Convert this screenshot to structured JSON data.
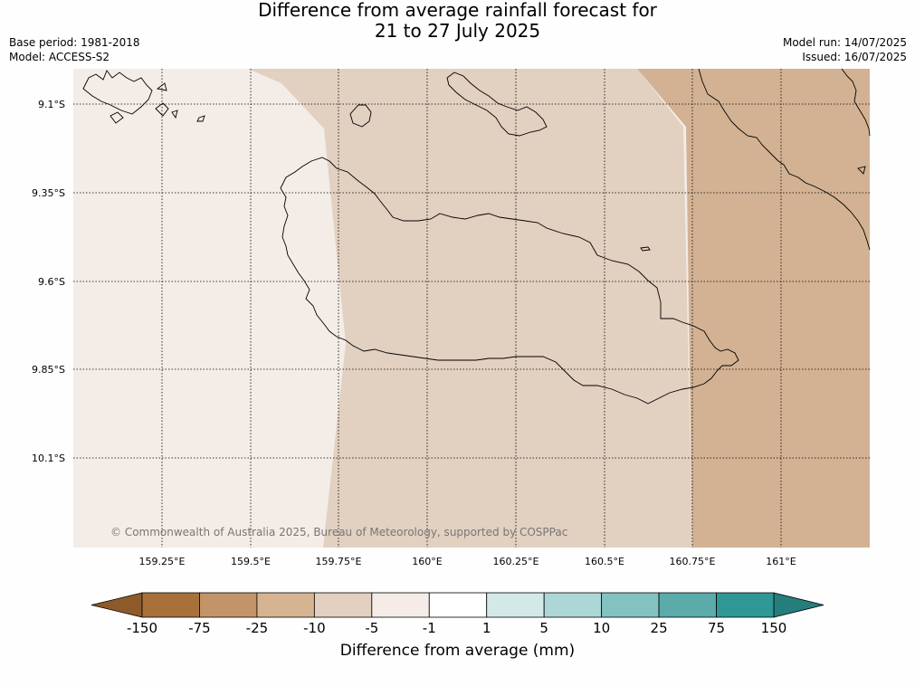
{
  "title": {
    "line1": "Difference from average rainfall forecast for",
    "line2": "21 to 27 July 2025"
  },
  "meta": {
    "base_period": "Base period: 1981-2018",
    "model": "Model: ACCESS-S2",
    "model_run": "Model run: 14/07/2025",
    "issued": "Issued: 16/07/2025"
  },
  "map": {
    "latitude_labels": [
      "9.1°S",
      "9.35°S",
      "9.6°S",
      "9.85°S",
      "10.1°S"
    ],
    "longitude_labels": [
      "159.25°E",
      "159.5°E",
      "159.75°E",
      "160°E",
      "160.25°E",
      "160.5°E",
      "160.75°E",
      "161°E"
    ],
    "copyright": "© Commonwealth of Australia 2025, Bureau of Meteorology, supported by COSPPac",
    "zones": [
      {
        "category": "-5 to -1",
        "color": "#f4ece7"
      },
      {
        "category": "-10 to -5",
        "color": "#e2d0c0"
      },
      {
        "category": "-25 to -10",
        "color": "#d2b293"
      }
    ]
  },
  "colorbar": {
    "ticks": [
      "-150",
      "-75",
      "-25",
      "-10",
      "-5",
      "-1",
      "1",
      "5",
      "10",
      "25",
      "75",
      "150"
    ],
    "colors": [
      "#a8713a",
      "#c39468",
      "#d6b391",
      "#e3d0c1",
      "#f5ece7",
      "#ffffff",
      "#d3e9e8",
      "#acd7d6",
      "#84c2c1",
      "#5aabaa",
      "#2f9896"
    ],
    "under_color": "#8f5a2a",
    "over_color": "#267e7c",
    "label": "Difference from average (mm)"
  }
}
